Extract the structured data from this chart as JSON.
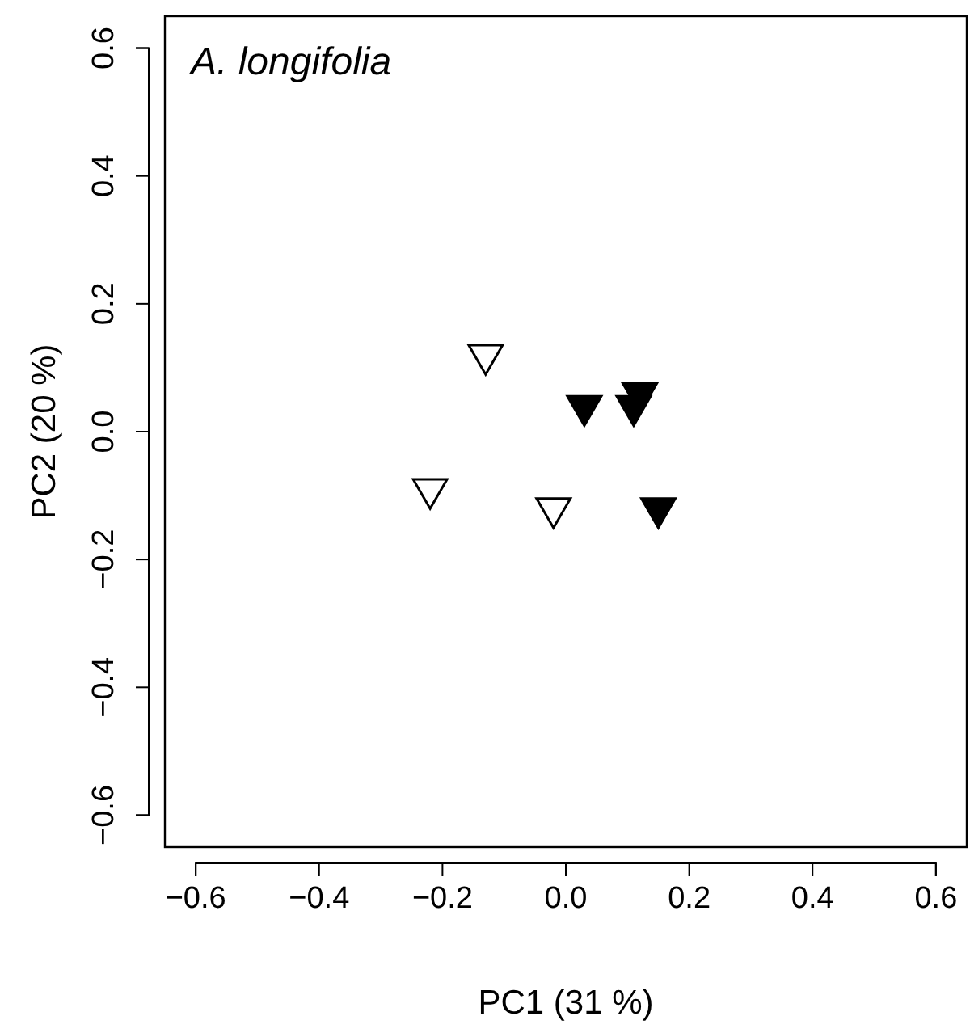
{
  "chart_data": {
    "type": "scatter",
    "title": "A. longifolia",
    "xlabel": "PC1 (31 %)",
    "ylabel": "PC2 (20 %)",
    "xlim": [
      -0.65,
      0.65
    ],
    "ylim": [
      -0.65,
      0.65
    ],
    "xticks": [
      {
        "value": -0.6,
        "label": "−0.6"
      },
      {
        "value": -0.4,
        "label": "−0.4"
      },
      {
        "value": -0.2,
        "label": "−0.2"
      },
      {
        "value": 0,
        "label": "0.0"
      },
      {
        "value": 0.2,
        "label": "0.2"
      },
      {
        "value": 0.4,
        "label": "0.4"
      },
      {
        "value": 0.6,
        "label": "0.6"
      }
    ],
    "yticks": [
      {
        "value": -0.6,
        "label": "−0.6"
      },
      {
        "value": -0.4,
        "label": "−0.4"
      },
      {
        "value": -0.2,
        "label": "−0.2"
      },
      {
        "value": 0,
        "label": "0.0"
      },
      {
        "value": 0.2,
        "label": "0.2"
      },
      {
        "value": 0.4,
        "label": "0.4"
      },
      {
        "value": 0.6,
        "label": "0.6"
      }
    ],
    "marker": "triangle",
    "grid": false,
    "series": [
      {
        "color": "#ffffff",
        "x": [
          -0.13,
          -0.22,
          -0.02
        ],
        "values": [
          0.12,
          -0.09,
          -0.12
        ]
      },
      {
        "color": "#000000",
        "x": [
          0.03,
          0.11,
          0.12,
          0.15
        ],
        "values": [
          0.04,
          0.04,
          0.06,
          -0.12
        ]
      }
    ]
  }
}
